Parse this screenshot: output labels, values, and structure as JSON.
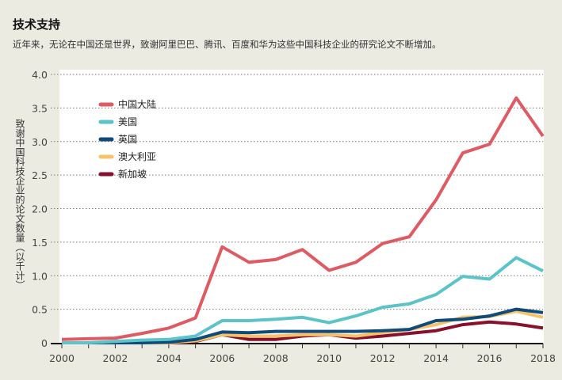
{
  "header": {
    "title": "技术支持",
    "subtitle": "近年来，无论在中国还是世界，致谢阿里巴巴、腾讯、百度和华为这些中国科技企业的研究论文不断增加。"
  },
  "chart_data": {
    "type": "line",
    "title": "技术支持",
    "ylabel": "致谢中国科技企业的论文数量（以千计）",
    "xlabel": "",
    "x": [
      2000,
      2001,
      2002,
      2003,
      2004,
      2005,
      2006,
      2007,
      2008,
      2009,
      2010,
      2011,
      2012,
      2013,
      2014,
      2015,
      2016,
      2017,
      2018
    ],
    "xticks": [
      "2000",
      "2002",
      "2004",
      "2006",
      "2008",
      "2010",
      "2012",
      "2014",
      "2016",
      "2018"
    ],
    "yticks": [
      "0",
      "0.5",
      "1.0",
      "1.5",
      "2.0",
      "2.5",
      "3.0",
      "3.5",
      "4.0"
    ],
    "ylim": [
      0,
      4.0
    ],
    "xlim": [
      2000,
      2018
    ],
    "grid": true,
    "legend_position": "top-left",
    "series": [
      {
        "name": "中国大陆",
        "color": "#e05a63",
        "values": [
          0.05,
          0.06,
          0.07,
          0.14,
          0.22,
          0.37,
          1.43,
          1.2,
          1.24,
          1.39,
          1.08,
          1.2,
          1.48,
          1.58,
          2.13,
          2.83,
          2.96,
          3.65,
          3.08
        ]
      },
      {
        "name": "美国",
        "color": "#5bc4c8",
        "values": [
          0.0,
          0.0,
          0.02,
          0.04,
          0.05,
          0.1,
          0.33,
          0.33,
          0.35,
          0.38,
          0.3,
          0.4,
          0.53,
          0.58,
          0.72,
          0.99,
          0.95,
          1.27,
          1.07
        ]
      },
      {
        "name": "英国",
        "color": "#0f4a7a",
        "values": [
          0.0,
          0.0,
          0.0,
          0.0,
          0.01,
          0.05,
          0.16,
          0.15,
          0.17,
          0.17,
          0.17,
          0.17,
          0.18,
          0.2,
          0.33,
          0.35,
          0.4,
          0.5,
          0.45
        ]
      },
      {
        "name": "澳大利亚",
        "color": "#f5c46a",
        "values": [
          0.0,
          0.0,
          0.0,
          0.0,
          0.0,
          0.03,
          0.12,
          0.1,
          0.1,
          0.12,
          0.12,
          0.1,
          0.15,
          0.2,
          0.27,
          0.38,
          0.39,
          0.47,
          0.38
        ]
      },
      {
        "name": "新加坡",
        "color": "#8a0f2a",
        "values": [
          0.0,
          0.0,
          0.0,
          0.0,
          0.0,
          0.02,
          0.12,
          0.05,
          0.05,
          0.1,
          0.12,
          0.07,
          0.1,
          0.14,
          0.18,
          0.27,
          0.31,
          0.28,
          0.22
        ]
      }
    ]
  }
}
